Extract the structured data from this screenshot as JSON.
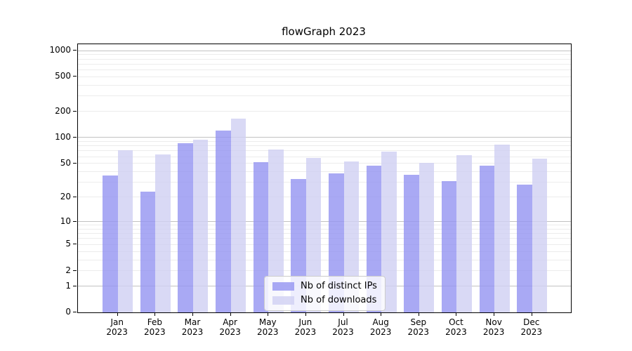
{
  "title": "flowGraph 2023",
  "legend": {
    "position": "lower-center-inside-plot",
    "items": [
      {
        "label": "Nb of distinct IPs",
        "color": "rgba(148,148,241,0.8)",
        "color_hex": "#a9a9f4"
      },
      {
        "label": "Nb of downloads",
        "color": "rgba(207,207,242,0.8)",
        "color_hex": "#dcdcf9"
      }
    ]
  },
  "chart_data": {
    "type": "bar",
    "title": "flowGraph 2023",
    "xlabel": "",
    "ylabel": "",
    "y_scale": "log10(1+y) (symlog-like, decades equal width above 1)",
    "ylim": [
      0,
      1140
    ],
    "grid": "horizontal major (powers of 10, darker) + minor (2-9 per decade, light)",
    "legend_position": "lower center inside plot",
    "year": "2023",
    "months": [
      "Jan",
      "Feb",
      "Mar",
      "Apr",
      "May",
      "Jun",
      "Jul",
      "Aug",
      "Sep",
      "Oct",
      "Nov",
      "Dec"
    ],
    "categories": [
      "Jan 2023",
      "Feb 2023",
      "Mar 2023",
      "Apr 2023",
      "May 2023",
      "Jun 2023",
      "Jul 2023",
      "Aug 2023",
      "Sep 2023",
      "Oct 2023",
      "Nov 2023",
      "Dec 2023"
    ],
    "yticks": [
      0,
      1,
      2,
      5,
      10,
      20,
      50,
      100,
      200,
      500,
      1000
    ],
    "ytick_labels": [
      "0",
      "1",
      "2",
      "5",
      "10",
      "20",
      "50",
      "100",
      "200",
      "500",
      "1000"
    ],
    "series": [
      {
        "name": "Nb of distinct IPs",
        "color": "rgba(148,148,241,0.8)",
        "values": [
          36,
          23,
          86,
          120,
          52,
          33,
          38,
          47,
          37,
          31,
          47,
          28
        ]
      },
      {
        "name": "Nb of downloads",
        "color": "rgba(207,207,242,0.8)",
        "values": [
          71,
          64,
          94,
          165,
          72,
          58,
          53,
          69,
          51,
          63,
          83,
          57
        ]
      }
    ]
  }
}
